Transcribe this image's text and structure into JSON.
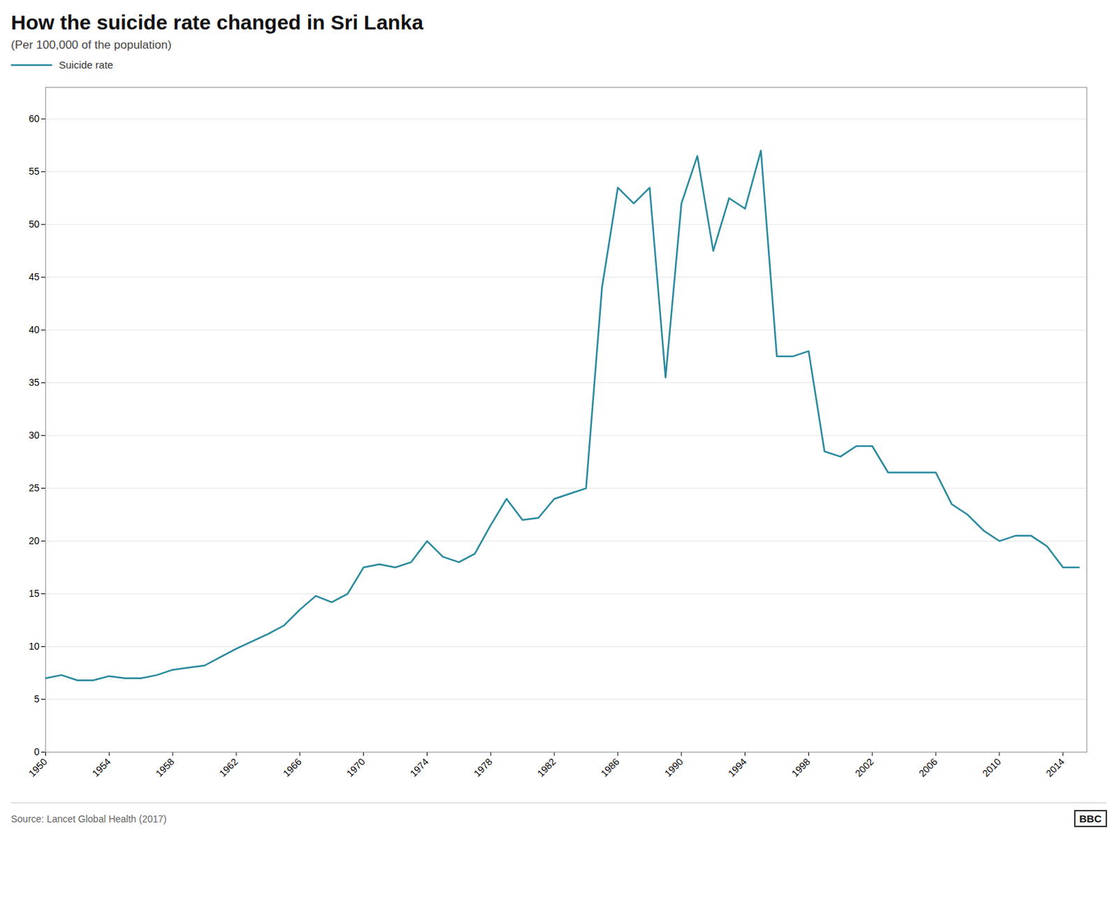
{
  "chart_data": {
    "type": "line",
    "title": "How the suicide rate changed in Sri Lanka",
    "subtitle": "(Per 100,000 of the population)",
    "source": "Source: Lancet Global Health (2017)",
    "logo": "BBC",
    "x": [
      1950,
      1951,
      1952,
      1953,
      1954,
      1955,
      1956,
      1957,
      1958,
      1959,
      1960,
      1961,
      1962,
      1963,
      1964,
      1965,
      1966,
      1967,
      1968,
      1969,
      1970,
      1971,
      1972,
      1973,
      1974,
      1975,
      1976,
      1977,
      1978,
      1979,
      1980,
      1981,
      1982,
      1983,
      1984,
      1985,
      1986,
      1987,
      1988,
      1989,
      1990,
      1991,
      1992,
      1993,
      1994,
      1995,
      1996,
      1997,
      1998,
      1999,
      2000,
      2001,
      2002,
      2003,
      2004,
      2005,
      2006,
      2007,
      2008,
      2009,
      2010,
      2011,
      2012,
      2013,
      2014,
      2015
    ],
    "series": [
      {
        "name": "Suicide rate",
        "color": "#2a8a9e",
        "values": [
          7.0,
          7.3,
          6.8,
          6.8,
          7.2,
          7.0,
          7.0,
          7.3,
          7.8,
          8.0,
          8.2,
          9.0,
          9.8,
          10.5,
          11.2,
          12.0,
          13.5,
          14.8,
          14.2,
          15.0,
          17.5,
          17.8,
          17.5,
          18.0,
          20.0,
          18.5,
          18.0,
          18.8,
          21.5,
          24.0,
          22.0,
          22.2,
          24.0,
          24.5,
          25.0,
          44.0,
          53.5,
          52.0,
          53.5,
          35.5,
          52.0,
          56.5,
          47.5,
          52.5,
          51.5,
          57.0,
          37.5,
          37.5,
          38.0,
          28.5,
          28.0,
          29.0,
          29.0,
          26.5,
          26.5,
          26.5,
          26.5,
          23.5,
          22.5,
          21.0,
          20.0,
          20.5,
          20.5,
          19.5,
          17.5,
          17.5
        ]
      }
    ],
    "xlim": [
      1950,
      2015.5
    ],
    "ylim": [
      0,
      63
    ],
    "xticks": [
      1950,
      1954,
      1958,
      1962,
      1966,
      1970,
      1974,
      1978,
      1982,
      1986,
      1990,
      1994,
      1998,
      2002,
      2006,
      2010,
      2014
    ],
    "yticks": [
      0,
      5,
      10,
      15,
      20,
      25,
      30,
      35,
      40,
      45,
      50,
      55,
      60
    ],
    "grid": "y",
    "legend": "top"
  }
}
